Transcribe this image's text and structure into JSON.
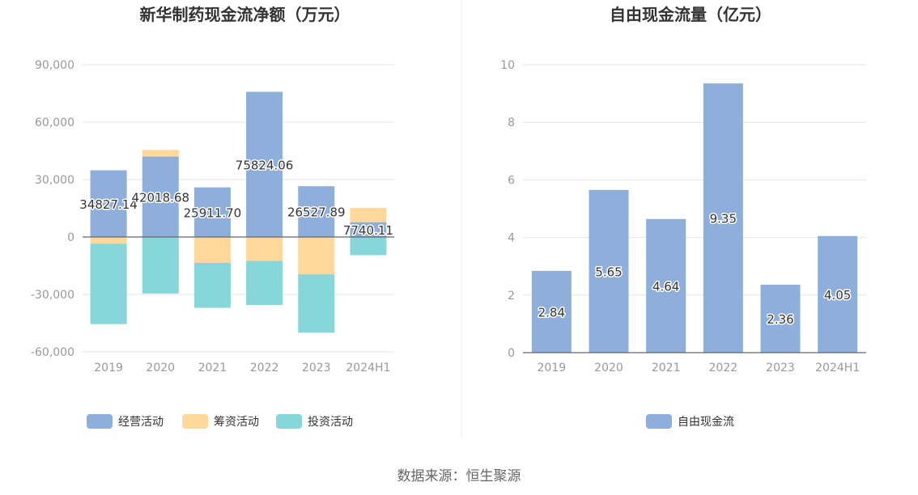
{
  "source_text": "数据来源：恒生聚源",
  "colors": {
    "operating": "#8eaedb",
    "financing": "#ffd99b",
    "investing": "#87d6da",
    "free_cash_flow": "#8eaedb",
    "grid": "#e6e6e6",
    "axis": "#666666",
    "tick_text": "#999999",
    "title": "#333333"
  },
  "chart_data": [
    {
      "type": "bar",
      "stacked": true,
      "title": "新华制药现金流净额（万元）",
      "categories": [
        "2019",
        "2020",
        "2021",
        "2022",
        "2023",
        "2024H1"
      ],
      "series": [
        {
          "name": "经营活动",
          "values": [
            34827.14,
            42018.68,
            25911.7,
            75824.06,
            26527.89,
            7740.11
          ]
        },
        {
          "name": "筹资活动",
          "values": [
            -3500,
            3500,
            -13500,
            -12500,
            -19500,
            7500
          ]
        },
        {
          "name": "投资活动",
          "values": [
            -42000,
            -29500,
            -23500,
            -23000,
            -30500,
            -9500
          ]
        }
      ],
      "data_labels": [
        "34827.14",
        "42018.68",
        "25911.70",
        "75824.06",
        "26527.89",
        "7740.11"
      ],
      "ylim": [
        -60000,
        90000
      ],
      "yticks": [
        "90,000",
        "60,000",
        "30,000",
        "0",
        "-30,000",
        "-60,000"
      ],
      "ytick_values": [
        90000,
        60000,
        30000,
        0,
        -30000,
        -60000
      ],
      "grid": true,
      "legend_position": "bottom",
      "legend": [
        "经营活动",
        "筹资活动",
        "投资活动"
      ]
    },
    {
      "type": "bar",
      "title": "自由现金流量（亿元）",
      "categories": [
        "2019",
        "2020",
        "2021",
        "2022",
        "2023",
        "2024H1"
      ],
      "series": [
        {
          "name": "自由现金流",
          "values": [
            2.84,
            5.65,
            4.64,
            9.35,
            2.36,
            4.05
          ]
        }
      ],
      "data_labels": [
        "2.84",
        "5.65",
        "4.64",
        "9.35",
        "2.36",
        "4.05"
      ],
      "ylim": [
        0,
        10
      ],
      "yticks": [
        "10",
        "8",
        "6",
        "4",
        "2",
        "0"
      ],
      "ytick_values": [
        10,
        8,
        6,
        4,
        2,
        0
      ],
      "grid": true,
      "legend_position": "bottom",
      "legend": [
        "自由现金流"
      ]
    }
  ]
}
